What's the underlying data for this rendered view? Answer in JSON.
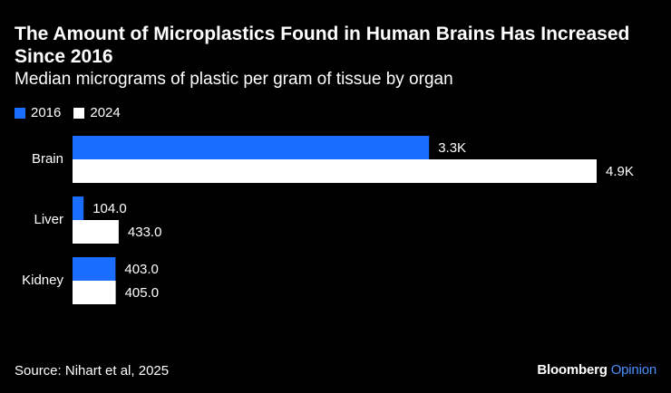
{
  "title": "The Amount of Microplastics Found in Human Brains Has Increased Since 2016",
  "subtitle": "Median micrograms of plastic per gram of tissue by organ",
  "legend": [
    {
      "label": "2016",
      "color": "#1a6dff"
    },
    {
      "label": "2024",
      "color": "#ffffff"
    }
  ],
  "chart_data": {
    "type": "bar",
    "orientation": "horizontal",
    "categories": [
      "Brain",
      "Liver",
      "Kidney"
    ],
    "series": [
      {
        "name": "2016",
        "color": "#1a6dff",
        "values": [
          3345,
          104.0,
          403.0
        ],
        "labels": [
          "3.3K",
          "104.0",
          "403.0"
        ]
      },
      {
        "name": "2024",
        "color": "#ffffff",
        "values": [
          4917,
          433.0,
          405.0
        ],
        "labels": [
          "4.9K",
          "433.0",
          "405.0"
        ]
      }
    ],
    "xlim": [
      0,
      4917
    ],
    "grid": false,
    "legend_position": "top-left"
  },
  "source": "Source: Nihart et al, 2025",
  "brand": {
    "name": "Bloomberg",
    "section": "Opinion"
  }
}
